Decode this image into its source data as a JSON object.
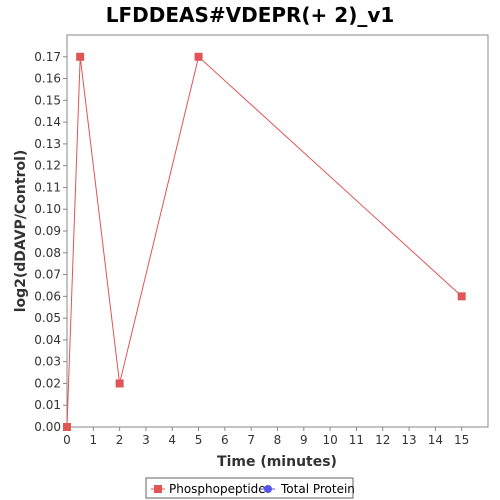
{
  "chart_data": {
    "type": "line",
    "title": "LFDDEAS#VDEPR(+ 2)_v1",
    "xlabel": "Time (minutes)",
    "ylabel": "log2(dDAVP/Control)",
    "xlim": [
      0,
      16
    ],
    "ylim": [
      0,
      0.18
    ],
    "xticks": [
      "0",
      "1",
      "2",
      "3",
      "4",
      "5",
      "6",
      "7",
      "8",
      "9",
      "10",
      "11",
      "12",
      "13",
      "14",
      "15"
    ],
    "yticks": [
      "0.00",
      "0.01",
      "0.02",
      "0.03",
      "0.04",
      "0.05",
      "0.06",
      "0.07",
      "0.08",
      "0.09",
      "0.10",
      "0.11",
      "0.12",
      "0.13",
      "0.14",
      "0.15",
      "0.16",
      "0.17"
    ],
    "grid": false,
    "legend_position": "bottom",
    "series": [
      {
        "name": "Phosphopeptide",
        "color": "#e05555",
        "marker": "square",
        "x": [
          0,
          0.5,
          2,
          5,
          15
        ],
        "y": [
          0.0,
          0.17,
          0.02,
          0.17,
          0.06
        ]
      },
      {
        "name": "Total Protein",
        "color": "#5555ee",
        "marker": "circle",
        "x": [],
        "y": []
      }
    ]
  }
}
